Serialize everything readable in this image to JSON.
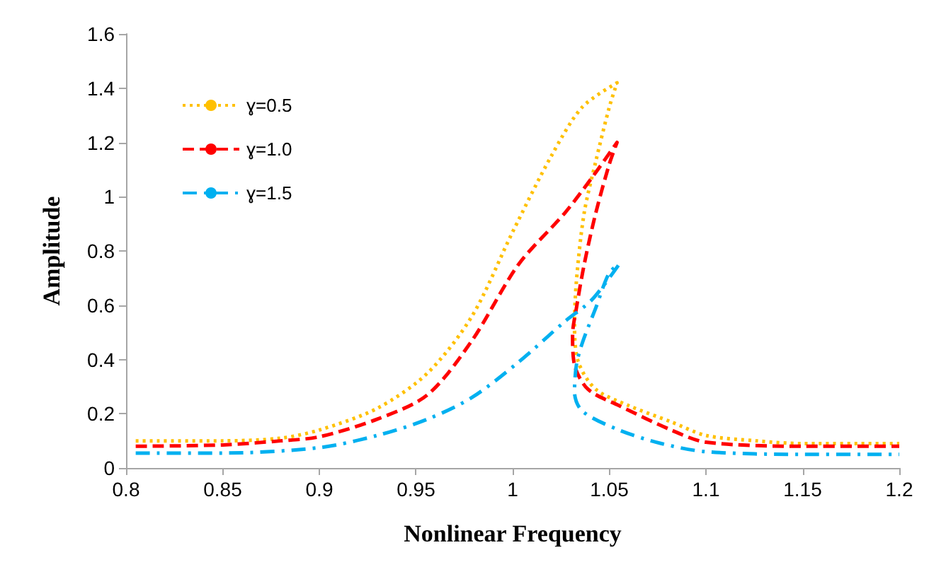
{
  "chart_data": {
    "type": "line",
    "xlabel": "Nonlinear Frequency",
    "ylabel": "Amplitude",
    "xlim": [
      0.8,
      1.2
    ],
    "xticks": [
      0.8,
      0.85,
      0.9,
      0.95,
      1,
      1.05,
      1.1,
      1.15,
      1.2
    ],
    "ylim": [
      0,
      1.6
    ],
    "yticks": [
      0,
      0.2,
      0.4,
      0.6,
      0.8,
      1,
      1.2,
      1.4,
      1.6
    ],
    "grid": false,
    "legend": "top left",
    "marker": "none",
    "series": [
      {
        "name": "ɣ=0.5",
        "color": "#ffc000",
        "line_style": "dotted",
        "x": [
          0.805,
          0.85,
          0.88,
          0.9,
          0.93,
          0.956,
          0.979,
          1.0,
          1.02,
          1.036,
          1.054,
          1.05,
          1.043,
          1.037,
          1.033,
          1.032,
          1.034,
          1.043,
          1.06,
          1.082,
          1.1,
          1.126,
          1.15,
          1.2
        ],
        "values": [
          0.1,
          0.1,
          0.11,
          0.14,
          0.22,
          0.35,
          0.56,
          0.87,
          1.15,
          1.33,
          1.42,
          1.33,
          1.13,
          0.94,
          0.69,
          0.52,
          0.39,
          0.29,
          0.23,
          0.17,
          0.12,
          0.1,
          0.09,
          0.09
        ]
      },
      {
        "name": "ɣ=1.0",
        "color": "#ff0000",
        "line_style": "dashed",
        "x": [
          0.805,
          0.85,
          0.88,
          0.9,
          0.93,
          0.956,
          0.979,
          1.003,
          1.027,
          1.041,
          1.054,
          1.05,
          1.043,
          1.037,
          1.033,
          1.031,
          1.032,
          1.039,
          1.055,
          1.082,
          1.1,
          1.15,
          1.2
        ],
        "values": [
          0.08,
          0.085,
          0.1,
          0.115,
          0.18,
          0.27,
          0.47,
          0.75,
          0.94,
          1.07,
          1.2,
          1.12,
          0.94,
          0.75,
          0.59,
          0.49,
          0.38,
          0.29,
          0.23,
          0.14,
          0.095,
          0.08,
          0.08
        ]
      },
      {
        "name": "ɣ=1.5",
        "color": "#00b0f0",
        "line_style": "dashdot",
        "x": [
          0.805,
          0.85,
          0.9,
          0.93,
          0.956,
          0.979,
          1.003,
          1.027,
          1.041,
          1.055,
          1.05,
          1.043,
          1.036,
          1.033,
          1.032,
          1.036,
          1.055,
          1.077,
          1.1,
          1.15,
          1.2
        ],
        "values": [
          0.055,
          0.055,
          0.075,
          0.12,
          0.18,
          0.26,
          0.39,
          0.54,
          0.62,
          0.75,
          0.72,
          0.59,
          0.46,
          0.38,
          0.28,
          0.21,
          0.14,
          0.09,
          0.06,
          0.05,
          0.05
        ]
      }
    ]
  }
}
